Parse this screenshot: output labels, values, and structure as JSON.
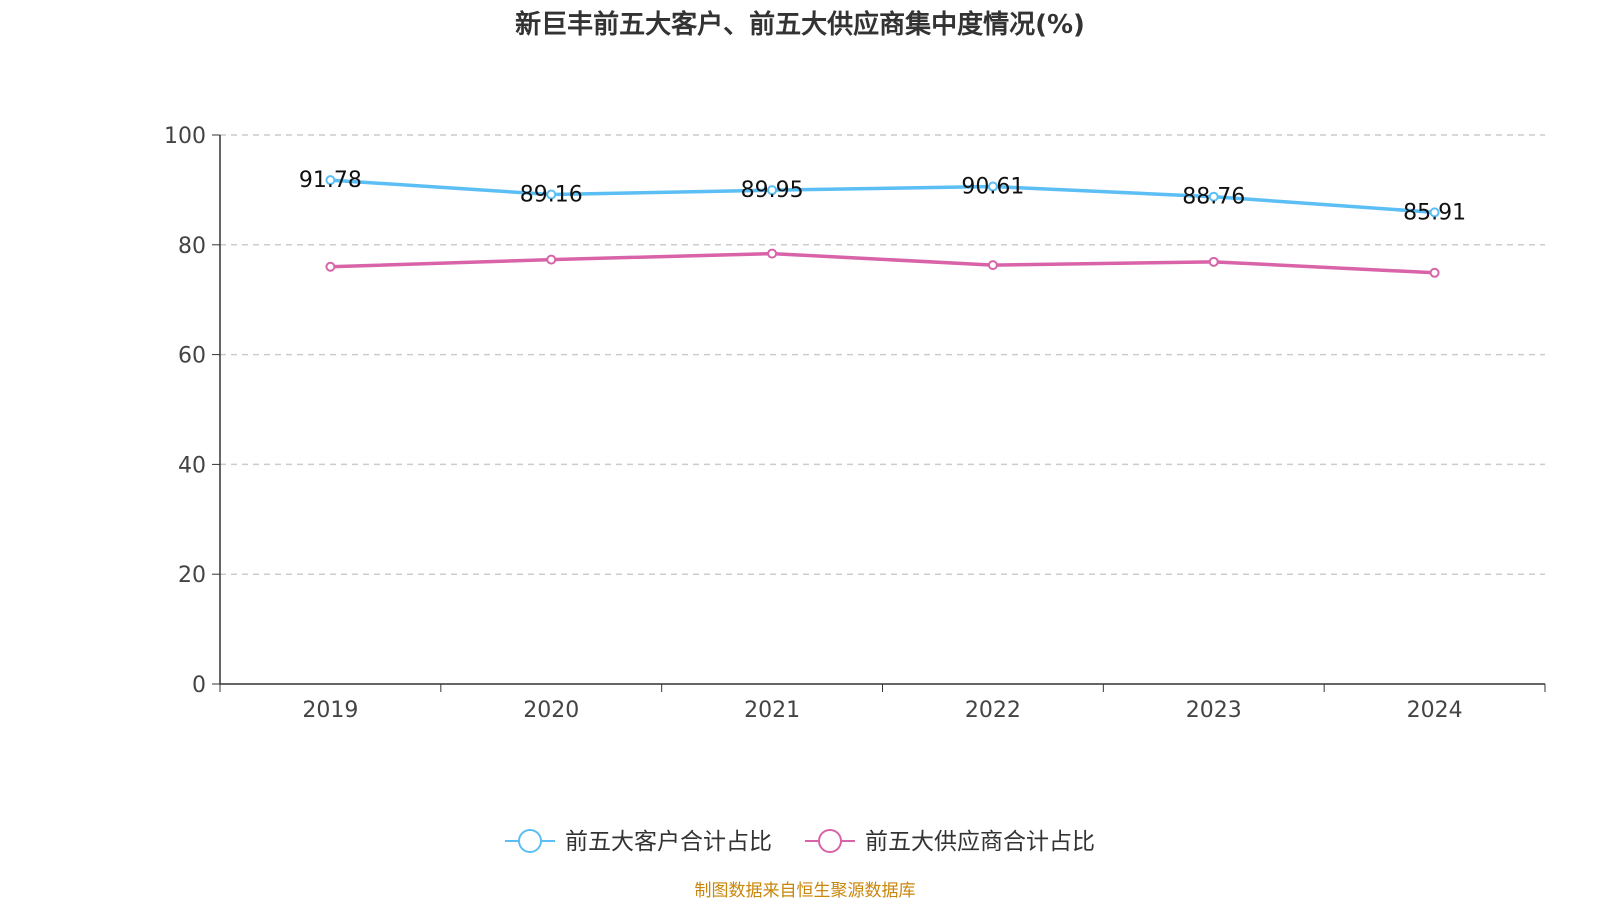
{
  "chart_data": {
    "type": "line",
    "title": "新巨丰前五大客户、前五大供应商集中度情况(%)",
    "categories": [
      "2019",
      "2020",
      "2021",
      "2022",
      "2023",
      "2024"
    ],
    "ylim": [
      0,
      100
    ],
    "yticks": [
      "0",
      "20",
      "40",
      "60",
      "80",
      "100"
    ],
    "grid": true,
    "legend_position": "bottom",
    "series": [
      {
        "name": "前五大客户合计占比",
        "color": "#5bbef5",
        "values": [
          91.78,
          89.16,
          89.95,
          90.61,
          88.76,
          85.91
        ],
        "labels": [
          "91.78",
          "89.16",
          "89.95",
          "90.61",
          "88.76",
          "85.91"
        ]
      },
      {
        "name": "前五大供应商合计占比",
        "color": "#d963a8",
        "values": [
          76.0,
          77.3,
          78.4,
          76.3,
          76.9,
          74.9
        ]
      }
    ],
    "source": "制图数据来自恒生聚源数据库",
    "source_color": "#c8860a"
  }
}
